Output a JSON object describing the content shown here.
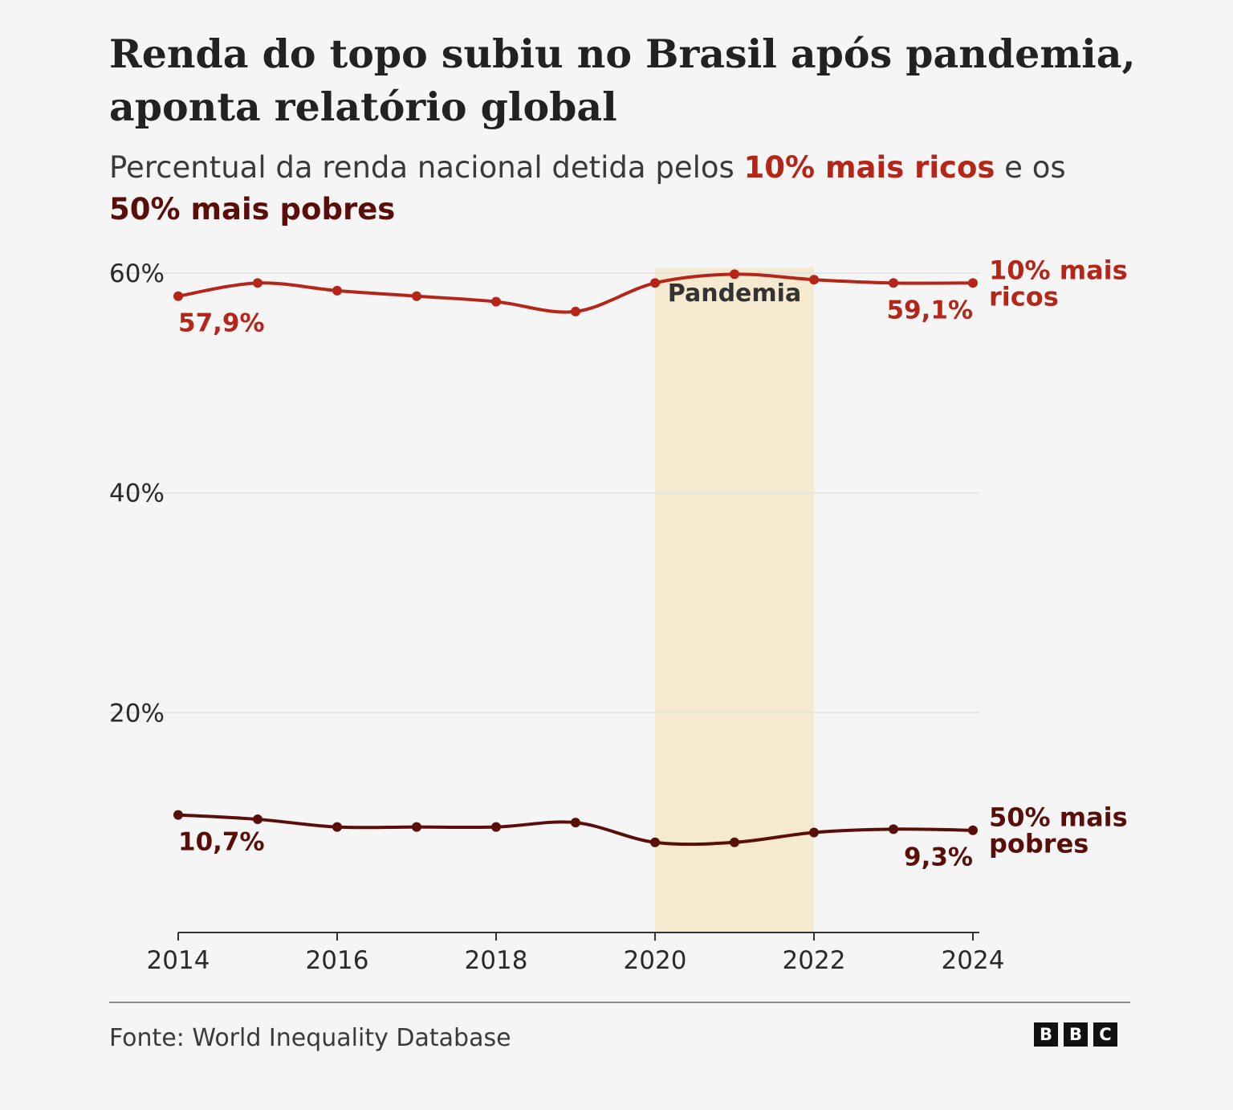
{
  "title": "Renda do topo subiu no Brasil após pandemia, aponta relatório global",
  "subtitle": {
    "prefix": "Percentual da renda nacional detida pelos ",
    "rich_label": "10% mais ricos",
    "middle": " e os ",
    "poor_label": "50% mais pobres"
  },
  "source": "Fonte: World Inequality Database",
  "logo_letters": [
    "B",
    "B",
    "C"
  ],
  "colors": {
    "rich": "#b52518",
    "poor": "#5a0e0a",
    "pandemic_band": "#f5e9cf",
    "gridline": "#e4e4e4",
    "axis": "#333333"
  },
  "chart_data": {
    "type": "line",
    "x": [
      2014,
      2015,
      2016,
      2017,
      2018,
      2019,
      2020,
      2021,
      2022,
      2023,
      2024
    ],
    "series": [
      {
        "name": "10% mais ricos",
        "color": "#b52518",
        "values": [
          57.9,
          59.1,
          58.4,
          57.9,
          57.4,
          56.5,
          59.1,
          59.9,
          59.4,
          59.1,
          59.1
        ],
        "start_label": "57,9%",
        "end_label": "59,1%",
        "line_label": [
          "10% mais",
          "ricos"
        ]
      },
      {
        "name": "50% mais pobres",
        "color": "#5a0e0a",
        "values": [
          10.7,
          10.3,
          9.6,
          9.6,
          9.6,
          10.0,
          8.2,
          8.2,
          9.1,
          9.4,
          9.3
        ],
        "start_label": "10,7%",
        "end_label": "9,3%",
        "line_label": [
          "50% mais",
          "pobres"
        ]
      }
    ],
    "ylim": [
      0,
      60
    ],
    "yticks": [
      20,
      40,
      60
    ],
    "ytick_labels": [
      "20%",
      "40%",
      "60%"
    ],
    "xlim": [
      2014,
      2024
    ],
    "xticks": [
      2014,
      2016,
      2018,
      2020,
      2022,
      2024
    ],
    "xtick_labels": [
      "2014",
      "2016",
      "2018",
      "2020",
      "2022",
      "2024"
    ],
    "annotations": [
      {
        "label": "Pandemia",
        "x_start": 2020,
        "x_end": 2022
      }
    ],
    "grid": "horizontal"
  }
}
